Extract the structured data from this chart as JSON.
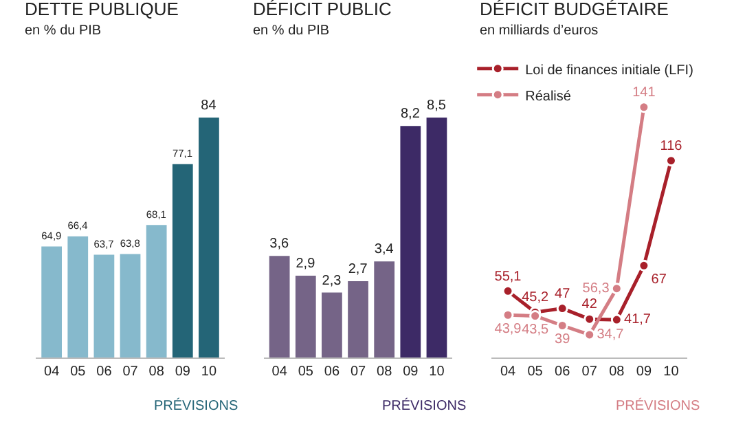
{
  "chart_data": [
    {
      "type": "bar",
      "title": "DETTE PUBLIQUE",
      "subtitle": "en % du PIB",
      "categories": [
        "04",
        "05",
        "06",
        "07",
        "08",
        "09",
        "10"
      ],
      "values": [
        64.9,
        66.4,
        63.7,
        63.8,
        68.1,
        77.1,
        84
      ],
      "value_labels": [
        "64,9",
        "66,4",
        "63,7",
        "63,8",
        "68,1",
        "77,1",
        "84"
      ],
      "colors": [
        "#86b9cc",
        "#86b9cc",
        "#86b9cc",
        "#86b9cc",
        "#86b9cc",
        "#246577",
        "#246577"
      ],
      "annotations": [
        "PRÉVISIONS"
      ]
    },
    {
      "type": "bar",
      "title": "DÉFICIT PUBLIC",
      "subtitle": "en % du PIB",
      "categories": [
        "04",
        "05",
        "06",
        "07",
        "08",
        "09",
        "10"
      ],
      "values": [
        3.6,
        2.9,
        2.3,
        2.7,
        3.4,
        8.2,
        8.5
      ],
      "value_labels": [
        "3,6",
        "2,9",
        "2,3",
        "2,7",
        "3,4",
        "8,2",
        "8,5"
      ],
      "colors": [
        "#756487",
        "#756487",
        "#756487",
        "#756487",
        "#756487",
        "#3d2a66",
        "#3d2a66"
      ],
      "annotations": [
        "PRÉVISIONS"
      ]
    },
    {
      "type": "line",
      "title": "DÉFICIT BUDGÉTAIRE",
      "subtitle": "en milliards d’euros",
      "categories": [
        "04",
        "05",
        "06",
        "07",
        "08",
        "09",
        "10"
      ],
      "series": [
        {
          "name": "Loi de finances initiale (LFI)",
          "color": "#a8202a",
          "values": [
            55.1,
            45.2,
            47,
            42,
            41.7,
            67,
            116
          ],
          "value_labels": [
            "55,1",
            "45,2",
            "47",
            "42",
            "41,7",
            "67",
            "116"
          ]
        },
        {
          "name": "Réalisé",
          "color": "#d47d84",
          "values": [
            43.9,
            43.5,
            39,
            34.7,
            56.3,
            141,
            null
          ],
          "value_labels": [
            "43,9",
            "43,5",
            "39",
            "34,7",
            "56,3",
            "141",
            null
          ]
        }
      ],
      "legend": "top left",
      "marker": "circle",
      "line_style": "solid",
      "annotations": [
        "PRÉVISIONS"
      ]
    }
  ]
}
